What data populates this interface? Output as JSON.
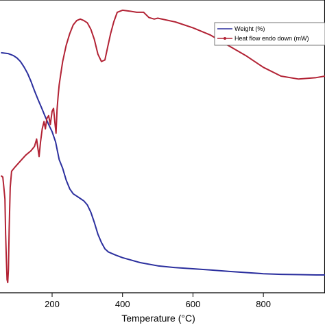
{
  "chart_data": {
    "type": "line",
    "title": "",
    "xlabel": "Temperature (°C)",
    "ylabel": "",
    "xlim": [
      52,
      975
    ],
    "ylim": [
      0,
      100
    ],
    "xticks": [
      200,
      400,
      600,
      800
    ],
    "xtick_labels": [
      "200",
      "400",
      "600",
      "800"
    ],
    "grid": false,
    "legend_position": "top-right",
    "series": [
      {
        "name": "Weight (%)",
        "color": "#2b2f9e",
        "points": [
          [
            55,
            82
          ],
          [
            75,
            81.7
          ],
          [
            90,
            81
          ],
          [
            100,
            80.2
          ],
          [
            110,
            79
          ],
          [
            120,
            77.2
          ],
          [
            130,
            75
          ],
          [
            140,
            72.2
          ],
          [
            150,
            69
          ],
          [
            160,
            66
          ],
          [
            170,
            63.2
          ],
          [
            180,
            60.3
          ],
          [
            190,
            57.5
          ],
          [
            200,
            55
          ],
          [
            210,
            51.5
          ],
          [
            215,
            48.5
          ],
          [
            220,
            45.5
          ],
          [
            230,
            42.5
          ],
          [
            240,
            38.5
          ],
          [
            250,
            35.5
          ],
          [
            260,
            33.8
          ],
          [
            270,
            33
          ],
          [
            280,
            32.2
          ],
          [
            290,
            31.4
          ],
          [
            300,
            30
          ],
          [
            310,
            27.5
          ],
          [
            320,
            24
          ],
          [
            330,
            20
          ],
          [
            340,
            17.2
          ],
          [
            350,
            15
          ],
          [
            360,
            13.9
          ],
          [
            380,
            12.9
          ],
          [
            400,
            12
          ],
          [
            450,
            10.3
          ],
          [
            500,
            9.2
          ],
          [
            550,
            8.6
          ],
          [
            600,
            8.2
          ],
          [
            650,
            7.8
          ],
          [
            700,
            7.3
          ],
          [
            750,
            6.9
          ],
          [
            800,
            6.5
          ],
          [
            850,
            6.3
          ],
          [
            900,
            6.2
          ],
          [
            950,
            6.1
          ],
          [
            975,
            6.1
          ]
        ]
      },
      {
        "name": "Heat flow endo down (mW)",
        "color": "#b22234",
        "points": [
          [
            55,
            40
          ],
          [
            60,
            39.5
          ],
          [
            63,
            36
          ],
          [
            66,
            32
          ],
          [
            68,
            20
          ],
          [
            70,
            12
          ],
          [
            72,
            4.5
          ],
          [
            74,
            3.5
          ],
          [
            76,
            8
          ],
          [
            78,
            22
          ],
          [
            81,
            36
          ],
          [
            85,
            41.5
          ],
          [
            95,
            43
          ],
          [
            110,
            45
          ],
          [
            125,
            47
          ],
          [
            140,
            48.5
          ],
          [
            150,
            50
          ],
          [
            156,
            52.5
          ],
          [
            160,
            49
          ],
          [
            163,
            46.5
          ],
          [
            167,
            51.5
          ],
          [
            172,
            56
          ],
          [
            177,
            58.5
          ],
          [
            181,
            56
          ],
          [
            185,
            59.5
          ],
          [
            190,
            60.5
          ],
          [
            195,
            57.5
          ],
          [
            200,
            62
          ],
          [
            204,
            63
          ],
          [
            208,
            58
          ],
          [
            211,
            54.5
          ],
          [
            214,
            62.5
          ],
          [
            217,
            67
          ],
          [
            220,
            71
          ],
          [
            225,
            75
          ],
          [
            230,
            79
          ],
          [
            240,
            84.5
          ],
          [
            250,
            88.5
          ],
          [
            260,
            91.5
          ],
          [
            270,
            93
          ],
          [
            280,
            93.5
          ],
          [
            290,
            93
          ],
          [
            300,
            92.2
          ],
          [
            310,
            90
          ],
          [
            320,
            86.5
          ],
          [
            330,
            81.5
          ],
          [
            340,
            79
          ],
          [
            350,
            79.5
          ],
          [
            358,
            84
          ],
          [
            366,
            88.5
          ],
          [
            375,
            92.5
          ],
          [
            385,
            95.8
          ],
          [
            400,
            96.5
          ],
          [
            420,
            96.2
          ],
          [
            440,
            95.8
          ],
          [
            460,
            95.8
          ],
          [
            475,
            94
          ],
          [
            490,
            93.5
          ],
          [
            500,
            93.8
          ],
          [
            550,
            92.5
          ],
          [
            600,
            90.5
          ],
          [
            650,
            88
          ],
          [
            700,
            84.5
          ],
          [
            750,
            81
          ],
          [
            800,
            77
          ],
          [
            850,
            74
          ],
          [
            900,
            73
          ],
          [
            950,
            73.5
          ],
          [
            975,
            74
          ]
        ]
      }
    ]
  }
}
